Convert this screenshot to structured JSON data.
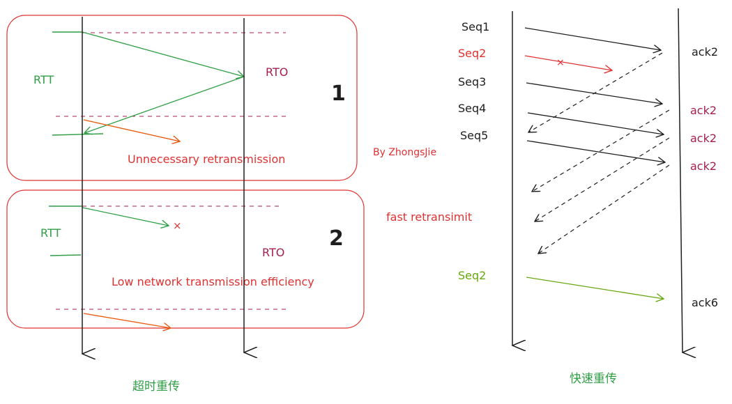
{
  "colors": {
    "ink": "#1e1e1e",
    "green": "#2f9e44",
    "red": "#e03131",
    "orange": "#e8590c",
    "purple": "#a61e4d",
    "seq_green": "#66a80f",
    "caption_green": "#2f9e44"
  },
  "left": {
    "caption": "超时重传",
    "panel1": {
      "rtt_label": "RTT",
      "rto_label": "RTO",
      "number": "1",
      "note": "Unnecessary retransmission"
    },
    "panel2": {
      "rtt_label": "RTT",
      "rto_label": "RTO",
      "number": "2",
      "lost_mark": "×",
      "note": "Low network transmission efficiency"
    },
    "author": "By ZhongsJie"
  },
  "right": {
    "caption": "快速重传",
    "seq_labels": [
      "Seq1",
      "Seq2",
      "Seq3",
      "Seq4",
      "Seq5"
    ],
    "lost_mark": "×",
    "ack_labels": [
      "ack2",
      "ack2",
      "ack2",
      "ack2"
    ],
    "fast_label": "fast retransimit",
    "resend_label": "Seq2",
    "final_ack": "ack6"
  }
}
